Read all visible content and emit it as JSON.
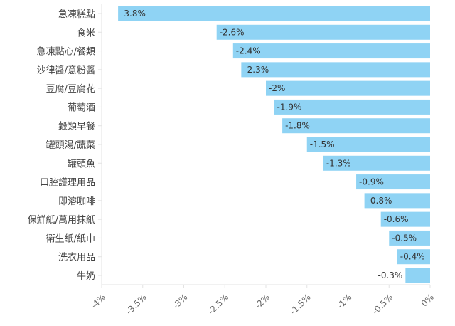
{
  "chart_data": {
    "type": "bar",
    "orientation": "horizontal",
    "categories": [
      "急凍糕點",
      "食米",
      "急凍點心/餐類",
      "沙律醬/意粉醬",
      "豆腐/豆腐花",
      "葡萄酒",
      "穀類早餐",
      "罐頭湯/蔬菜",
      "罐頭魚",
      "口腔護理用品",
      "即溶咖啡",
      "保鮮紙/萬用抹紙",
      "衛生紙/紙巾",
      "洗衣用品",
      "牛奶"
    ],
    "values": [
      -3.8,
      -2.6,
      -2.4,
      -2.3,
      -2,
      -1.9,
      -1.8,
      -1.5,
      -1.3,
      -0.9,
      -0.8,
      -0.6,
      -0.5,
      -0.4,
      -0.3
    ],
    "value_labels": [
      "-3.8%",
      "-2.6%",
      "-2.4%",
      "-2.3%",
      "-2%",
      "-1.9%",
      "-1.8%",
      "-1.5%",
      "-1.3%",
      "-0.9%",
      "-0.8%",
      "-0.6%",
      "-0.5%",
      "-0.4%",
      "-0.3%"
    ],
    "xlim": [
      -4,
      0
    ],
    "xticks": [
      -4,
      -3.5,
      -3,
      -2.5,
      -2,
      -1.5,
      -1,
      -0.5,
      0
    ],
    "xtick_labels": [
      "-4%",
      "-3.5%",
      "-3%",
      "-2.5%",
      "-2%",
      "-1.5%",
      "-1%",
      "-0.5%",
      "0%"
    ],
    "title": "",
    "xlabel": "",
    "ylabel": "",
    "grid": false,
    "bar_color": "#8fd3f4"
  }
}
